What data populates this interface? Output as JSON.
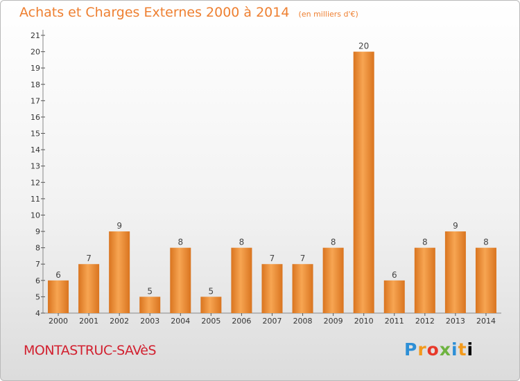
{
  "header": {
    "title": "Achats et Charges Externes 2000 à 2014",
    "unit": "(en milliers d'€)"
  },
  "footer": {
    "commune": "MONTASTRUC-SAVèS",
    "logo_letters": [
      "P",
      "r",
      "o",
      "x",
      "i",
      "t",
      "i"
    ]
  },
  "chart_data": {
    "type": "bar",
    "title": "Achats et Charges Externes 2000 à 2014",
    "subtitle": "(en milliers d'€)",
    "xlabel": "",
    "ylabel": "",
    "categories": [
      "2000",
      "2001",
      "2002",
      "2003",
      "2004",
      "2005",
      "2006",
      "2007",
      "2008",
      "2009",
      "2010",
      "2011",
      "2012",
      "2013",
      "2014"
    ],
    "values": [
      6,
      7,
      9,
      5,
      8,
      5,
      8,
      7,
      7,
      8,
      20,
      6,
      8,
      9,
      8
    ],
    "ylim": [
      4,
      21
    ],
    "yticks": [
      4,
      5,
      6,
      7,
      8,
      9,
      10,
      11,
      12,
      13,
      14,
      15,
      16,
      17,
      18,
      19,
      20,
      21
    ],
    "grid": false,
    "legend": "none",
    "colors": {
      "bar_light": "#f7a552",
      "bar_dark": "#d9741f",
      "title": "#ee7f30",
      "commune": "#d2202f",
      "axis": "#888888"
    }
  }
}
